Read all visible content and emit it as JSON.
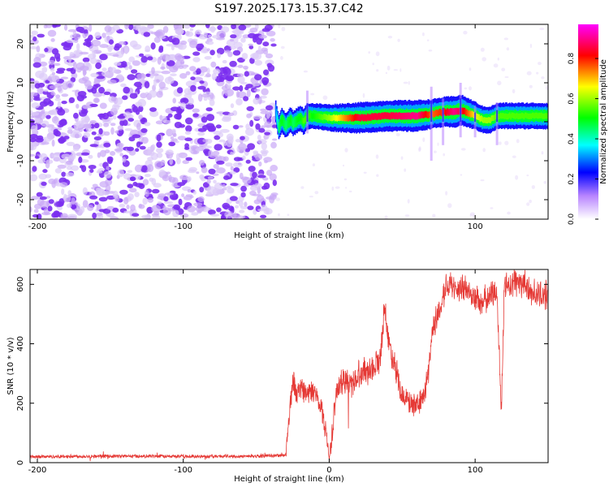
{
  "figure": {
    "title": "S197.2025.173.15.37.C42"
  },
  "chart_data": [
    {
      "type": "heatmap",
      "xlabel": "Height of straight line (km)",
      "ylabel": "Frequency (Hz)",
      "xlim": [
        -205,
        150
      ],
      "ylim": [
        -25,
        25
      ],
      "xticks": [
        -200,
        -100,
        0,
        100
      ],
      "yticks": [
        -20,
        -10,
        0,
        10,
        20
      ],
      "colorbar": {
        "label": "Normalized spectral amplitude",
        "range": [
          0,
          0.97
        ],
        "ticks": [
          0,
          0.2,
          0.4,
          0.6,
          0.8
        ],
        "tick_labels": [
          "0.0",
          "0.2",
          "0.4",
          "0.6",
          "0.8"
        ],
        "colormap": [
          "#ffffff",
          "#8a2be2",
          "#0000ff",
          "#00ffff",
          "#00ff00",
          "#ffff00",
          "#ff0000",
          "#ff00ff"
        ]
      },
      "noise_region": {
        "x_range": [
          -205,
          -37
        ],
        "amplitude_range": [
          0.0,
          0.25
        ]
      },
      "ridge": {
        "x": [
          -37,
          -35,
          -33,
          -30,
          -27,
          -25,
          -22,
          -20,
          -18,
          -15,
          -12,
          0,
          20,
          40,
          60,
          70,
          78,
          85,
          90,
          100,
          105,
          110,
          115,
          130,
          150
        ],
        "frequency": [
          2.5,
          -1.5,
          0.5,
          -1.0,
          0.5,
          -0.5,
          0.5,
          1.0,
          0.0,
          1.5,
          1.5,
          1.0,
          1.0,
          1.5,
          1.5,
          2.0,
          2.5,
          2.5,
          3.0,
          1.5,
          0.5,
          0.5,
          1.5,
          1.5,
          1.5
        ],
        "amplitude": [
          0.3,
          0.45,
          0.5,
          0.45,
          0.5,
          0.45,
          0.5,
          0.5,
          0.55,
          0.55,
          0.5,
          0.6,
          0.85,
          0.85,
          0.9,
          0.75,
          0.8,
          0.9,
          0.85,
          0.65,
          0.6,
          0.6,
          0.55,
          0.55,
          0.55
        ]
      }
    },
    {
      "type": "line",
      "xlabel": "Height of straight line (km)",
      "ylabel": "SNR (10 * v/v)",
      "xlim": [
        -205,
        150
      ],
      "ylim": [
        0,
        650
      ],
      "xticks": [
        -200,
        -100,
        0,
        100
      ],
      "yticks": [
        0,
        200,
        400,
        600
      ],
      "color": "#e53935",
      "series": [
        {
          "x": [
            -205,
            -150,
            -100,
            -50,
            -30,
            -28,
            -25,
            -22,
            -20,
            -15,
            -10,
            -5,
            -2,
            0,
            5,
            10,
            15,
            20,
            25,
            30,
            35,
            38,
            40,
            45,
            50,
            55,
            60,
            62,
            65,
            68,
            70,
            72,
            75,
            78,
            80,
            82,
            85,
            88,
            90,
            95,
            100,
            105,
            110,
            115,
            118,
            120,
            125,
            130,
            135,
            140,
            150
          ],
          "y": [
            20,
            22,
            21,
            22,
            25,
            120,
            280,
            220,
            260,
            230,
            240,
            180,
            100,
            10,
            240,
            280,
            260,
            300,
            310,
            320,
            350,
            540,
            420,
            330,
            230,
            200,
            190,
            200,
            230,
            300,
            420,
            470,
            500,
            560,
            600,
            610,
            580,
            560,
            590,
            580,
            550,
            540,
            560,
            580,
            170,
            590,
            600,
            610,
            590,
            570,
            560
          ]
        }
      ]
    }
  ]
}
